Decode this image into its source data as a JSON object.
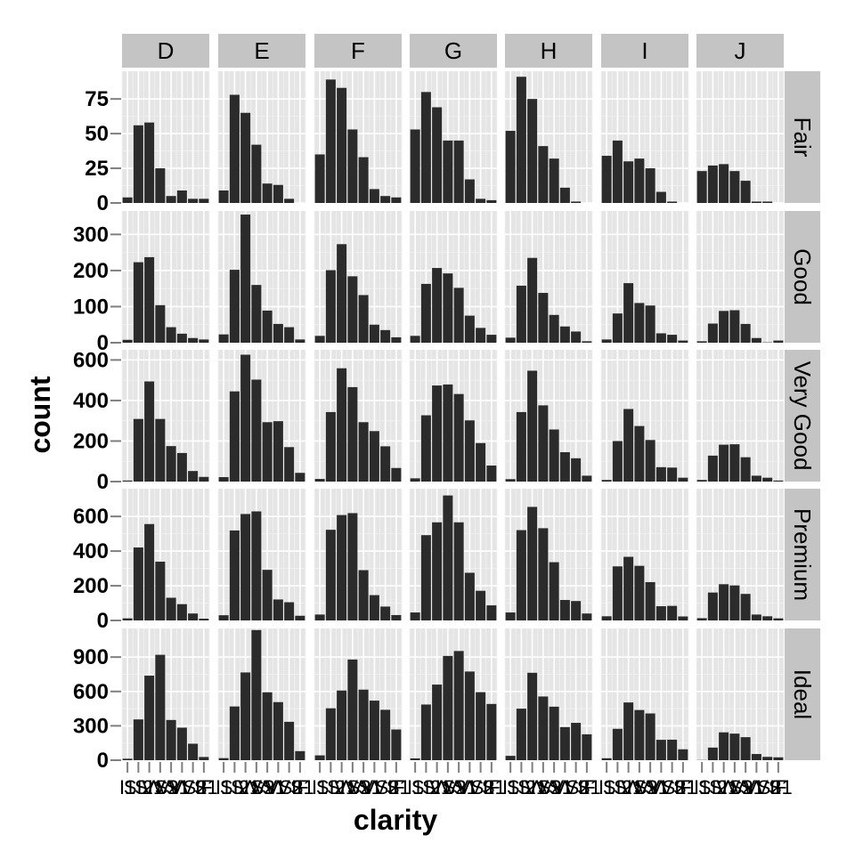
{
  "chart_data": {
    "type": "bar",
    "xlabel": "clarity",
    "ylabel": "count",
    "categories": [
      "I1",
      "SI2",
      "SI1",
      "VS2",
      "VS1",
      "VVS2",
      "VVS1",
      "IF"
    ],
    "facet_columns": [
      "D",
      "E",
      "F",
      "G",
      "H",
      "I",
      "J"
    ],
    "facet_rows": [
      "Fair",
      "Good",
      "Very Good",
      "Premium",
      "Ideal"
    ],
    "y_scales": "free per row",
    "grid": true,
    "rows": [
      {
        "name": "Fair",
        "ylim": [
          0,
          95
        ],
        "yticks": [
          0,
          25,
          50,
          75
        ],
        "panels": [
          {
            "column": "D",
            "values": [
              4,
              56,
              58,
              25,
              5,
              9,
              3,
              3
            ]
          },
          {
            "column": "E",
            "values": [
              9,
              78,
              65,
              42,
              14,
              13,
              3,
              0
            ]
          },
          {
            "column": "F",
            "values": [
              35,
              89,
              83,
              53,
              33,
              10,
              5,
              4
            ]
          },
          {
            "column": "G",
            "values": [
              53,
              80,
              69,
              45,
              45,
              17,
              3,
              2
            ]
          },
          {
            "column": "H",
            "values": [
              52,
              91,
              75,
              41,
              32,
              11,
              1,
              0
            ]
          },
          {
            "column": "I",
            "values": [
              34,
              45,
              30,
              32,
              25,
              8,
              1,
              0
            ]
          },
          {
            "column": "J",
            "values": [
              23,
              27,
              28,
              23,
              16,
              1,
              1,
              0
            ]
          }
        ]
      },
      {
        "name": "Good",
        "ylim": [
          0,
          365
        ],
        "yticks": [
          0,
          100,
          200,
          300
        ],
        "panels": [
          {
            "column": "D",
            "values": [
              8,
              223,
              237,
              104,
              43,
              25,
              13,
              9
            ]
          },
          {
            "column": "E",
            "values": [
              23,
              202,
              355,
              160,
              89,
              52,
              43,
              9
            ]
          },
          {
            "column": "F",
            "values": [
              19,
              201,
              273,
              184,
              132,
              50,
              35,
              15
            ]
          },
          {
            "column": "G",
            "values": [
              19,
              163,
              207,
              192,
              152,
              75,
              41,
              22
            ]
          },
          {
            "column": "H",
            "values": [
              14,
              158,
              235,
              138,
              77,
              45,
              31,
              4
            ]
          },
          {
            "column": "I",
            "values": [
              9,
              81,
              165,
              110,
              103,
              26,
              22,
              6
            ]
          },
          {
            "column": "J",
            "values": [
              4,
              53,
              88,
              90,
              52,
              13,
              1,
              6
            ]
          }
        ]
      },
      {
        "name": "Very Good",
        "ylim": [
          0,
          650
        ],
        "yticks": [
          0,
          200,
          400,
          600
        ],
        "panels": [
          {
            "column": "D",
            "values": [
              5,
              309,
              494,
              309,
              175,
              141,
              52,
              23
            ]
          },
          {
            "column": "E",
            "values": [
              22,
              445,
              626,
              503,
              293,
              298,
              170,
              43
            ]
          },
          {
            "column": "F",
            "values": [
              13,
              343,
              559,
              466,
              293,
              249,
              174,
              67
            ]
          },
          {
            "column": "G",
            "values": [
              16,
              327,
              474,
              479,
              432,
              302,
              190,
              79
            ]
          },
          {
            "column": "H",
            "values": [
              12,
              343,
              547,
              376,
              257,
              145,
              115,
              29
            ]
          },
          {
            "column": "I",
            "values": [
              8,
              200,
              358,
              274,
              205,
              71,
              69,
              19
            ]
          },
          {
            "column": "J",
            "values": [
              8,
              128,
              182,
              184,
              120,
              29,
              19,
              5
            ]
          }
        ]
      },
      {
        "name": "Premium",
        "ylim": [
          0,
          760
        ],
        "yticks": [
          0,
          200,
          400,
          600
        ],
        "panels": [
          {
            "column": "D",
            "values": [
              12,
              421,
              556,
              339,
              131,
              94,
              40,
              10
            ]
          },
          {
            "column": "E",
            "values": [
              30,
              519,
              614,
              629,
              292,
              121,
              105,
              27
            ]
          },
          {
            "column": "F",
            "values": [
              34,
              523,
              608,
              619,
              290,
              146,
              80,
              31
            ]
          },
          {
            "column": "G",
            "values": [
              46,
              492,
              566,
              721,
              566,
              275,
              171,
              87
            ]
          },
          {
            "column": "H",
            "values": [
              46,
              521,
              655,
              532,
              336,
              118,
              112,
              40
            ]
          },
          {
            "column": "I",
            "values": [
              24,
              312,
              367,
              315,
              221,
              82,
              84,
              23
            ]
          },
          {
            "column": "J",
            "values": [
              13,
              161,
              209,
              202,
              153,
              34,
              24,
              12
            ]
          }
        ]
      },
      {
        "name": "Ideal",
        "ylim": [
          0,
          1150
        ],
        "yticks": [
          0,
          300,
          600,
          900
        ],
        "panels": [
          {
            "column": "D",
            "values": [
              13,
              356,
              738,
              920,
              351,
              284,
              144,
              28
            ]
          },
          {
            "column": "E",
            "values": [
              18,
              469,
              766,
              1136,
              593,
              507,
              335,
              79
            ]
          },
          {
            "column": "F",
            "values": [
              42,
              453,
              608,
              879,
              616,
              520,
              440,
              268
            ]
          },
          {
            "column": "G",
            "values": [
              16,
              486,
              660,
              910,
              953,
              774,
              594,
              491
            ]
          },
          {
            "column": "H",
            "values": [
              38,
              450,
              763,
              556,
              467,
              289,
              326,
              226
            ]
          },
          {
            "column": "I",
            "values": [
              17,
              274,
              504,
              438,
              408,
              178,
              179,
              95
            ]
          },
          {
            "column": "J",
            "values": [
              2,
              110,
              243,
              232,
              201,
              54,
              29,
              25
            ]
          }
        ]
      }
    ]
  }
}
